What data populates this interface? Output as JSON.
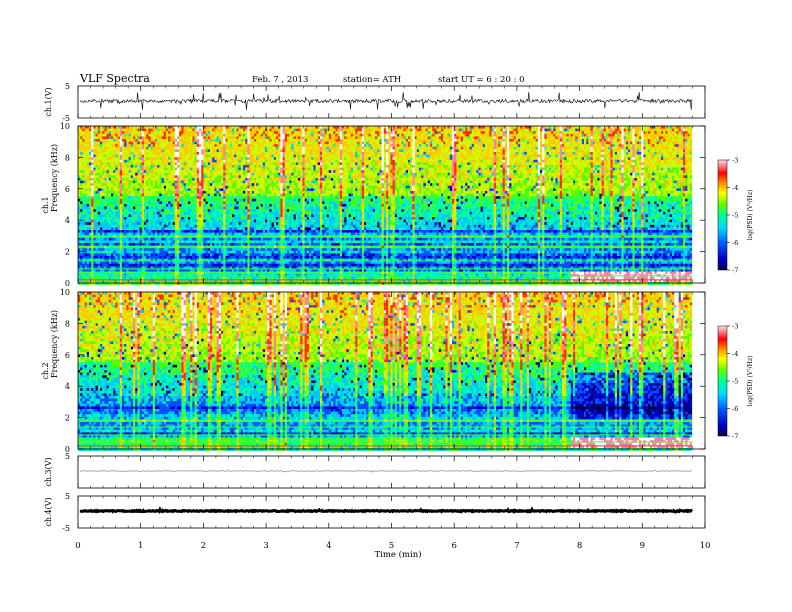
{
  "header": {
    "title": "VLF  Spectra",
    "date": "Feb. 7  , 2013",
    "station": "station= ATH",
    "start": "start  UT  =   6  : 20 : 0"
  },
  "chart_data": [
    {
      "type": "line",
      "panel": "ch1-waveform",
      "ylabel": "ch.1(V)",
      "ylim": [
        -5,
        5
      ],
      "yticks": [
        "5",
        "-5"
      ],
      "series": [
        {
          "description": "noisy waveform near 0 V with spikes",
          "y_range": [
            -2.5,
            2.5
          ]
        }
      ]
    },
    {
      "type": "heatmap",
      "panel": "ch1-spectrogram",
      "ylabel": "ch.1\nFrequency  (kHz)",
      "ylabel_lines": [
        "ch.1",
        "Frequency  (kHz)"
      ],
      "ylim": [
        0,
        10
      ],
      "yticks": [
        "10",
        "8",
        "6",
        "4",
        "2",
        "0"
      ],
      "xlim": [
        0,
        10
      ],
      "data_end_min": 9.8,
      "colorbar": {
        "label": "log(PSD) (V²/Hz)",
        "ticks": [
          "-3",
          "-4",
          "-5",
          "-6",
          "-7"
        ],
        "range": [
          -7,
          -3
        ]
      }
    },
    {
      "type": "heatmap",
      "panel": "ch2-spectrogram",
      "ylabel_lines": [
        "ch.2",
        "Frequency  (kHz)"
      ],
      "ylim": [
        0,
        10
      ],
      "yticks": [
        "10",
        "8",
        "6",
        "4",
        "2",
        "0"
      ],
      "xlim": [
        0,
        10
      ],
      "data_end_min": 9.8,
      "colorbar": {
        "label": "log(PSD) (V²/Hz)",
        "ticks": [
          "-3",
          "-4",
          "-5",
          "-6",
          "-7"
        ],
        "range": [
          -7,
          -3
        ]
      }
    },
    {
      "type": "line",
      "panel": "ch3-waveform",
      "ylabel": "ch.3(V)",
      "ylim": [
        -5,
        5
      ],
      "yticks": [
        "5"
      ],
      "series": [
        {
          "description": "flat trace near 0 V"
        }
      ]
    },
    {
      "type": "line",
      "panel": "ch4-waveform",
      "ylabel": "ch.4(V)",
      "ylim": [
        -5,
        5
      ],
      "yticks": [
        "5",
        "-5"
      ],
      "xlabel": "Time  (min)",
      "xticks": [
        "0",
        "1",
        "2",
        "3",
        "4",
        "5",
        "6",
        "7",
        "8",
        "9",
        "10"
      ],
      "series": [
        {
          "description": "thick flat trace near 0 V"
        }
      ]
    }
  ],
  "colors": {
    "colormap": [
      "#000050",
      "#0000c8",
      "#0050ff",
      "#00c8ff",
      "#00ffa0",
      "#50ff00",
      "#c8ff00",
      "#ffc800",
      "#ff3000",
      "#ff80a0",
      "#ffffff"
    ]
  }
}
